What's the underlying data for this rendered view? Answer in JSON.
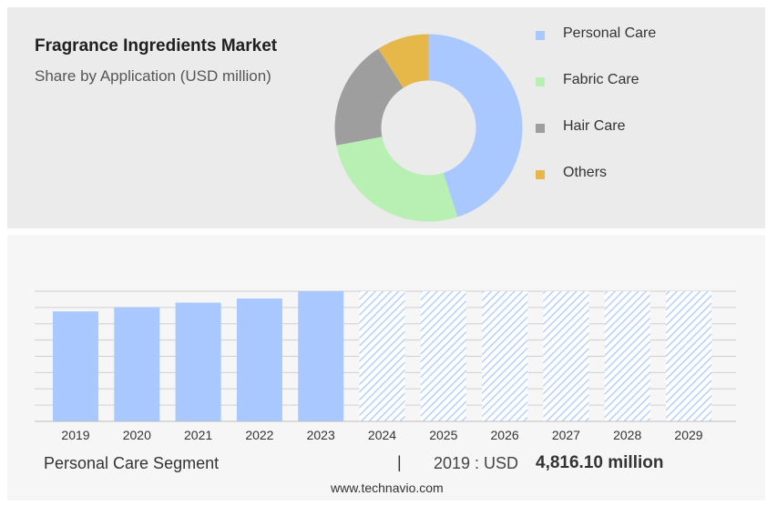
{
  "title": "Fragrance Ingredients Market",
  "subtitle": "Share by Application (USD million)",
  "colors": {
    "personal_care": "#a9c8ff",
    "fabric_care": "#b7f0b2",
    "hair_care": "#9e9e9e",
    "others": "#e6b84a",
    "bar": "#a9c8ff",
    "forecast_hatch": "#a9c8ff",
    "grid": "#cfcfcf"
  },
  "chart_data": [
    {
      "type": "pie",
      "style": "donut",
      "categories": [
        "Personal Care",
        "Fabric Care",
        "Hair Care",
        "Others"
      ],
      "values": [
        45,
        27,
        19,
        9
      ],
      "legend": "right"
    },
    {
      "type": "bar",
      "categories": [
        "2019",
        "2020",
        "2021",
        "2022",
        "2023",
        "2024",
        "2025",
        "2026",
        "2027",
        "2028",
        "2029"
      ],
      "values": [
        4816.1,
        5000,
        5200,
        5380,
        5700,
        5700,
        5700,
        5700,
        5700,
        5700,
        5700
      ],
      "forecast_from": "2024",
      "grid": true,
      "ylim": [
        0,
        5700
      ]
    }
  ],
  "footer": {
    "segment_label": "Personal Care Segment",
    "separator": "|",
    "year_text": "2019 : USD",
    "value_text": "4,816.10 million"
  },
  "watermark": "www.technavio.com"
}
